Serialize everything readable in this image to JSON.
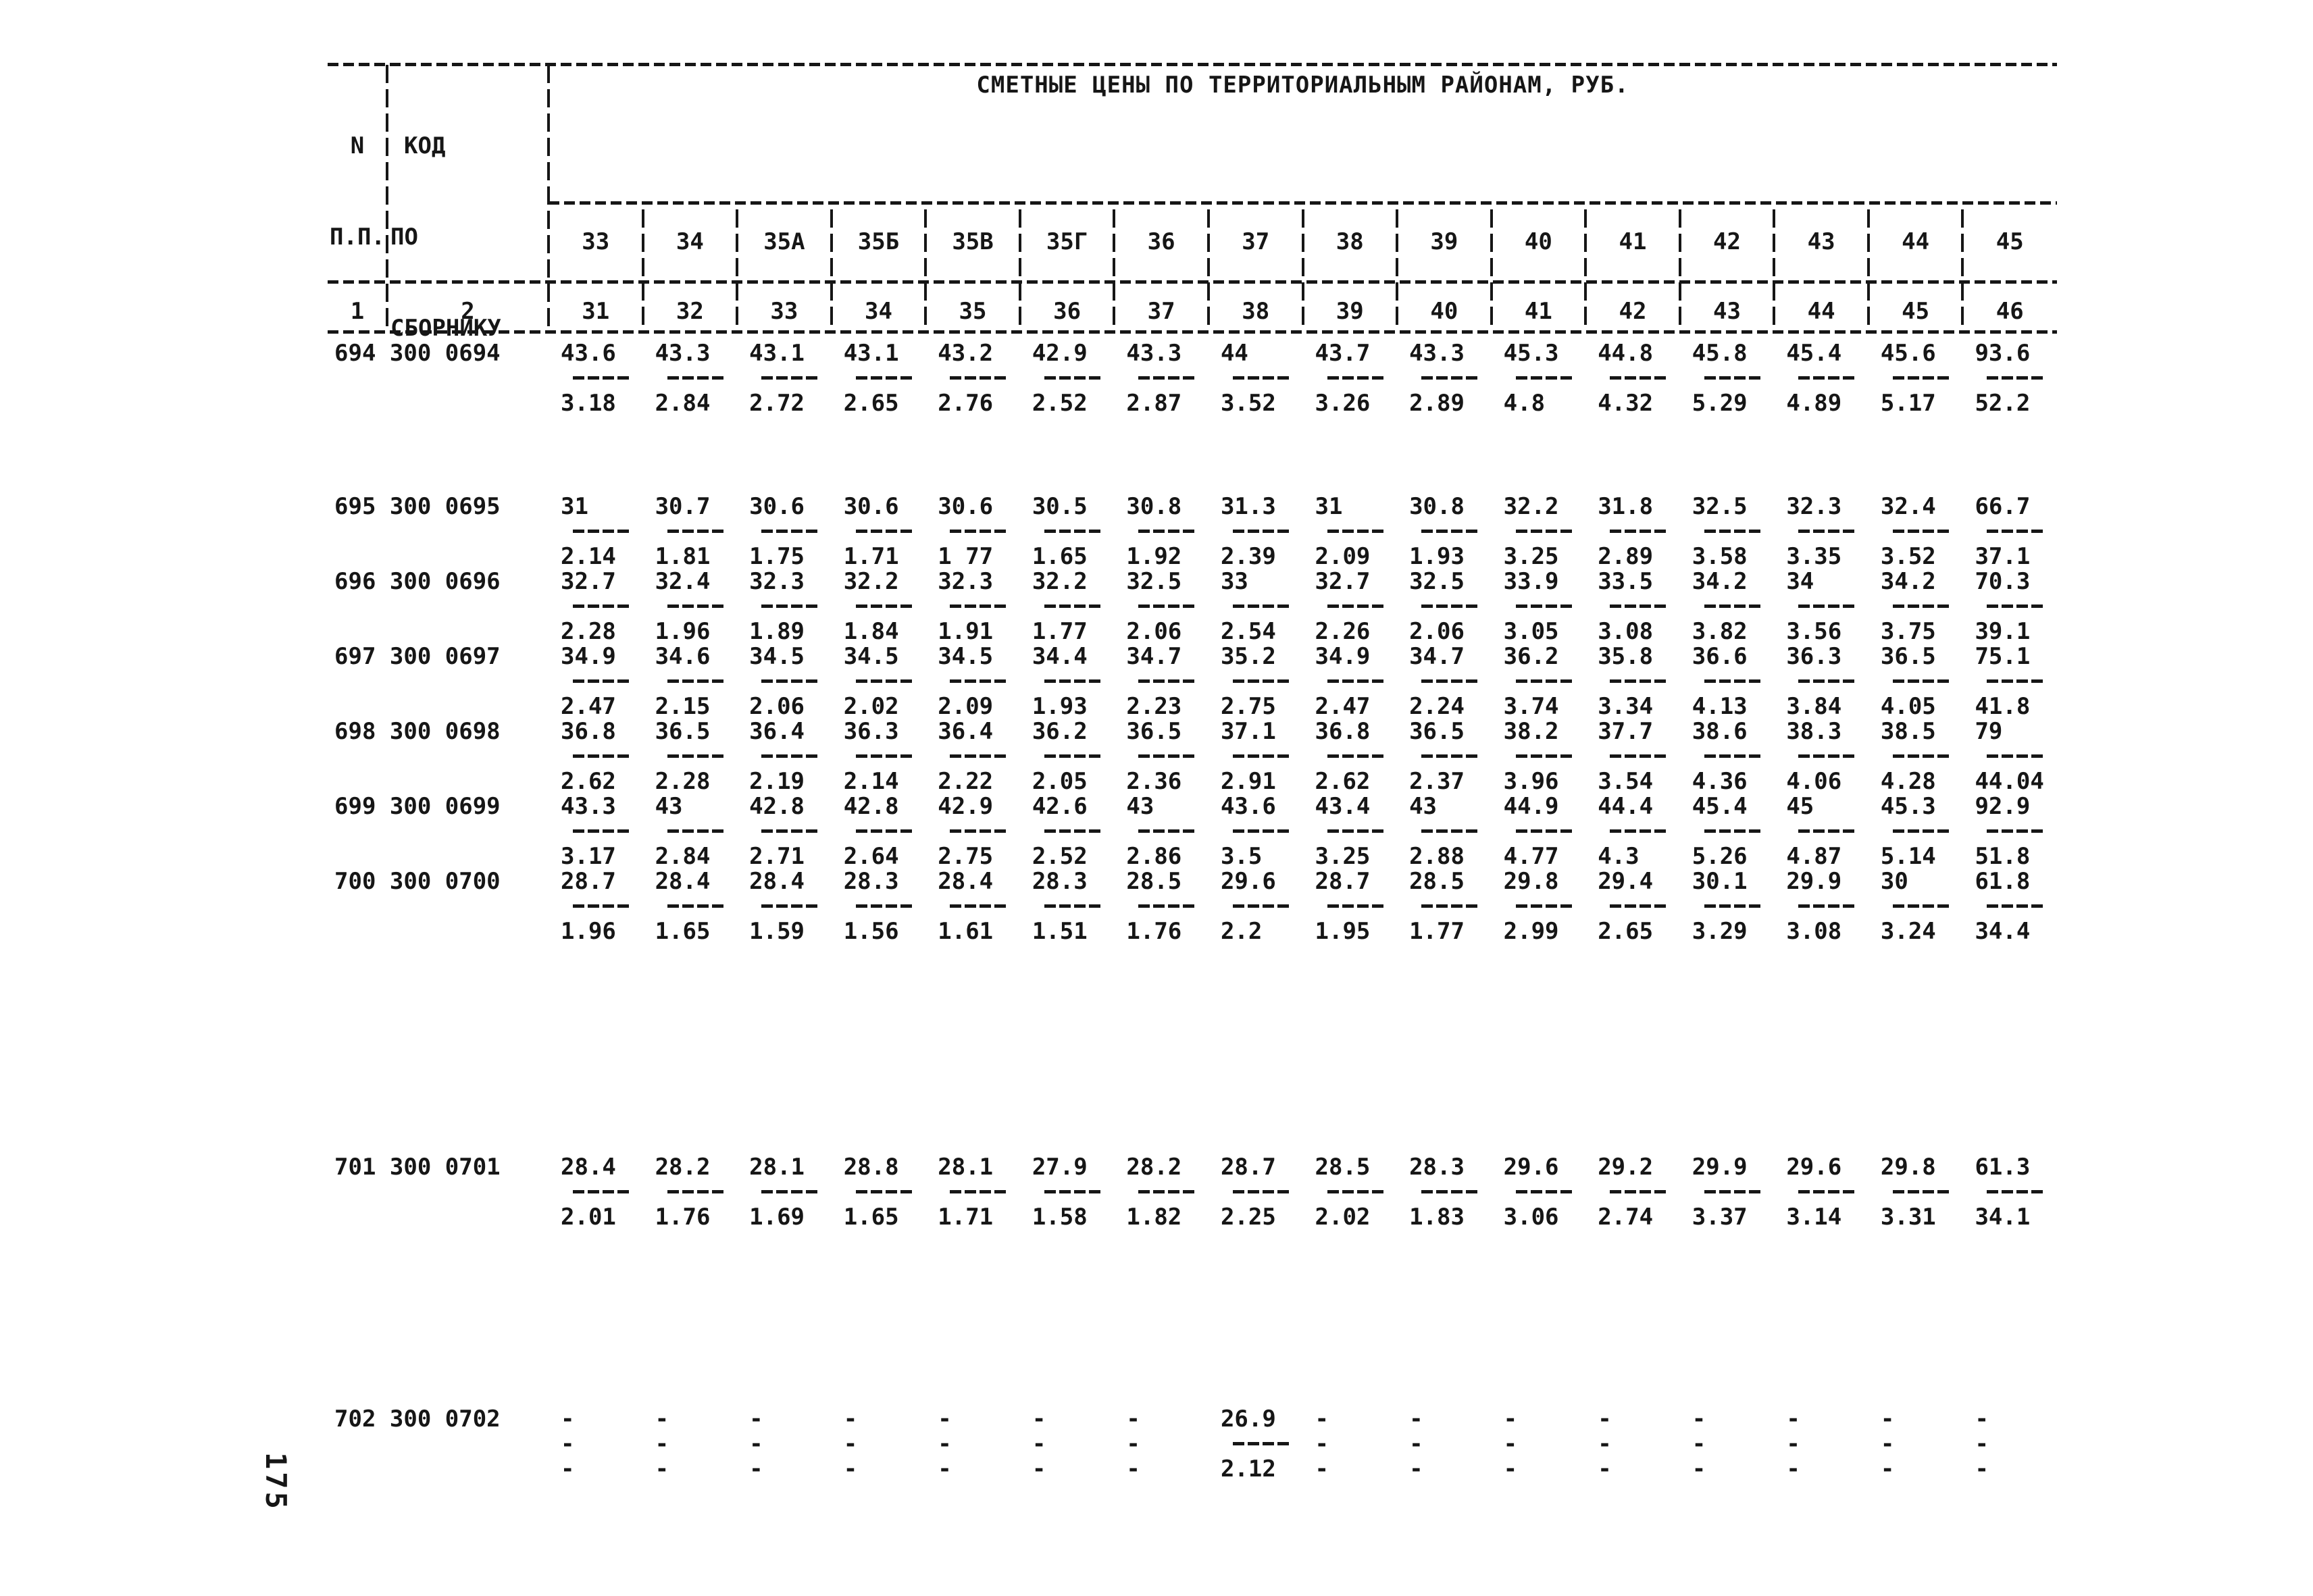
{
  "page": {
    "number": "175"
  },
  "colors": {
    "ink": "#161616",
    "paper": "#ffffff"
  },
  "table": {
    "title": "СМЕТНЫЕ ЦЕНЫ ПО ТЕРРИТОРИАЛЬНЫМ РАЙОНАМ, РУБ.",
    "header": {
      "col_n": [
        "N",
        "П.П."
      ],
      "col_code": [
        "КОД",
        "ПО",
        "СБОРНИКУ"
      ],
      "districts": [
        "33",
        "34",
        "35А",
        "35Б",
        "35В",
        "35Г",
        "36",
        "37",
        "38",
        "39",
        "40",
        "41",
        "42",
        "43",
        "44",
        "45"
      ],
      "index_row": [
        "1",
        "2",
        "31",
        "32",
        "33",
        "34",
        "35",
        "36",
        "37",
        "38",
        "39",
        "40",
        "41",
        "42",
        "43",
        "44",
        "45",
        "46"
      ]
    },
    "rows": [
      {
        "n": "694",
        "code": "300 0694",
        "upper": [
          "43.6",
          "43.3",
          "43.1",
          "43.1",
          "43.2",
          "42.9",
          "43.3",
          "44",
          "43.7",
          "43.3",
          "45.3",
          "44.8",
          "45.8",
          "45.4",
          "45.6",
          "93.6"
        ],
        "lower": [
          "3.18",
          "2.84",
          "2.72",
          "2.65",
          "2.76",
          "2.52",
          "2.87",
          "3.52",
          "3.26",
          "2.89",
          "4.8",
          "4.32",
          "5.29",
          "4.89",
          "5.17",
          "52.2"
        ]
      },
      {
        "n": "695",
        "code": "300 0695",
        "upper": [
          "31",
          "30.7",
          "30.6",
          "30.6",
          "30.6",
          "30.5",
          "30.8",
          "31.3",
          "31",
          "30.8",
          "32.2",
          "31.8",
          "32.5",
          "32.3",
          "32.4",
          "66.7"
        ],
        "lower": [
          "2.14",
          "1.81",
          "1.75",
          "1.71",
          "1 77",
          "1.65",
          "1.92",
          "2.39",
          "2.09",
          "1.93",
          "3.25",
          "2.89",
          "3.58",
          "3.35",
          "3.52",
          "37.1"
        ]
      },
      {
        "n": "696",
        "code": "300 0696",
        "upper": [
          "32.7",
          "32.4",
          "32.3",
          "32.2",
          "32.3",
          "32.2",
          "32.5",
          "33",
          "32.7",
          "32.5",
          "33.9",
          "33.5",
          "34.2",
          "34",
          "34.2",
          "70.3"
        ],
        "lower": [
          "2.28",
          "1.96",
          "1.89",
          "1.84",
          "1.91",
          "1.77",
          "2.06",
          "2.54",
          "2.26",
          "2.06",
          "3.05",
          "3.08",
          "3.82",
          "3.56",
          "3.75",
          "39.1"
        ]
      },
      {
        "n": "697",
        "code": "300 0697",
        "upper": [
          "34.9",
          "34.6",
          "34.5",
          "34.5",
          "34.5",
          "34.4",
          "34.7",
          "35.2",
          "34.9",
          "34.7",
          "36.2",
          "35.8",
          "36.6",
          "36.3",
          "36.5",
          "75.1"
        ],
        "lower": [
          "2.47",
          "2.15",
          "2.06",
          "2.02",
          "2.09",
          "1.93",
          "2.23",
          "2.75",
          "2.47",
          "2.24",
          "3.74",
          "3.34",
          "4.13",
          "3.84",
          "4.05",
          "41.8"
        ]
      },
      {
        "n": "698",
        "code": "300 0698",
        "upper": [
          "36.8",
          "36.5",
          "36.4",
          "36.3",
          "36.4",
          "36.2",
          "36.5",
          "37.1",
          "36.8",
          "36.5",
          "38.2",
          "37.7",
          "38.6",
          "38.3",
          "38.5",
          "79"
        ],
        "lower": [
          "2.62",
          "2.28",
          "2.19",
          "2.14",
          "2.22",
          "2.05",
          "2.36",
          "2.91",
          "2.62",
          "2.37",
          "3.96",
          "3.54",
          "4.36",
          "4.06",
          "4.28",
          "44.04"
        ]
      },
      {
        "n": "699",
        "code": "300 0699",
        "upper": [
          "43.3",
          "43",
          "42.8",
          "42.8",
          "42.9",
          "42.6",
          "43",
          "43.6",
          "43.4",
          "43",
          "44.9",
          "44.4",
          "45.4",
          "45",
          "45.3",
          "92.9"
        ],
        "lower": [
          "3.17",
          "2.84",
          "2.71",
          "2.64",
          "2.75",
          "2.52",
          "2.86",
          "3.5",
          "3.25",
          "2.88",
          "4.77",
          "4.3",
          "5.26",
          "4.87",
          "5.14",
          "51.8"
        ]
      },
      {
        "n": "700",
        "code": "300 0700",
        "upper": [
          "28.7",
          "28.4",
          "28.4",
          "28.3",
          "28.4",
          "28.3",
          "28.5",
          "29.6",
          "28.7",
          "28.5",
          "29.8",
          "29.4",
          "30.1",
          "29.9",
          "30",
          "61.8"
        ],
        "lower": [
          "1.96",
          "1.65",
          "1.59",
          "1.56",
          "1.61",
          "1.51",
          "1.76",
          "2.2",
          "1.95",
          "1.77",
          "2.99",
          "2.65",
          "3.29",
          "3.08",
          "3.24",
          "34.4"
        ]
      },
      {
        "n": "701",
        "code": "300 0701",
        "upper": [
          "28.4",
          "28.2",
          "28.1",
          "28.8",
          "28.1",
          "27.9",
          "28.2",
          "28.7",
          "28.5",
          "28.3",
          "29.6",
          "29.2",
          "29.9",
          "29.6",
          "29.8",
          "61.3"
        ],
        "lower": [
          "2.01",
          "1.76",
          "1.69",
          "1.65",
          "1.71",
          "1.58",
          "1.82",
          "2.25",
          "2.02",
          "1.83",
          "3.06",
          "2.74",
          "3.37",
          "3.14",
          "3.31",
          "34.1"
        ]
      },
      {
        "n": "702",
        "code": "300 0702",
        "upper": [
          "-",
          "-",
          "-",
          "-",
          "-",
          "-",
          "-",
          "26.9",
          "-",
          "-",
          "-",
          "-",
          "-",
          "-",
          "-",
          "-"
        ],
        "lower": [
          "-",
          "-",
          "-",
          "-",
          "-",
          "-",
          "-",
          "2.12",
          "-",
          "-",
          "-",
          "-",
          "-",
          "-",
          "-",
          "-"
        ]
      }
    ]
  }
}
